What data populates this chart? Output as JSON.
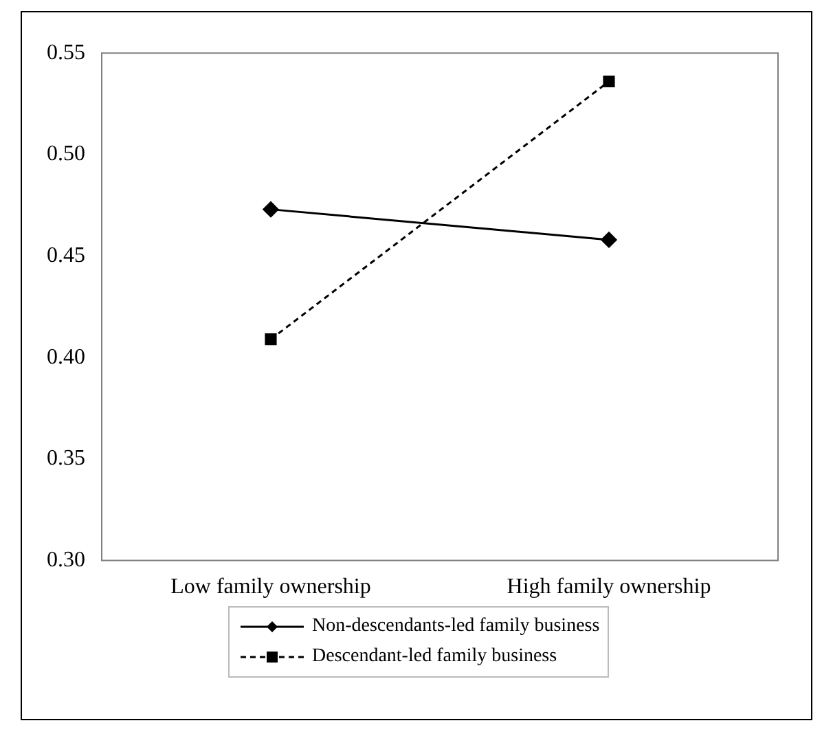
{
  "chart_data": {
    "type": "line",
    "categories": [
      "Low family ownership",
      "High family ownership"
    ],
    "series": [
      {
        "name": "Non-descendants-led family business",
        "color": "#000000",
        "values": [
          0.473,
          0.458
        ],
        "marker": "diamond",
        "line_style": "solid"
      },
      {
        "name": "Descendant-led family business",
        "color": "#000000",
        "values": [
          0.409,
          0.536
        ],
        "marker": "square",
        "line_style": "dashed"
      }
    ],
    "ylim": [
      0.3,
      0.55
    ],
    "yticks": [
      {
        "value": 0.3,
        "label": "0.30"
      },
      {
        "value": 0.35,
        "label": "0.35"
      },
      {
        "value": 0.4,
        "label": "0.40"
      },
      {
        "value": 0.45,
        "label": "0.45"
      },
      {
        "value": 0.5,
        "label": "0.50"
      },
      {
        "value": 0.55,
        "label": "0.55"
      }
    ],
    "grid": false,
    "legend": "bottom"
  }
}
